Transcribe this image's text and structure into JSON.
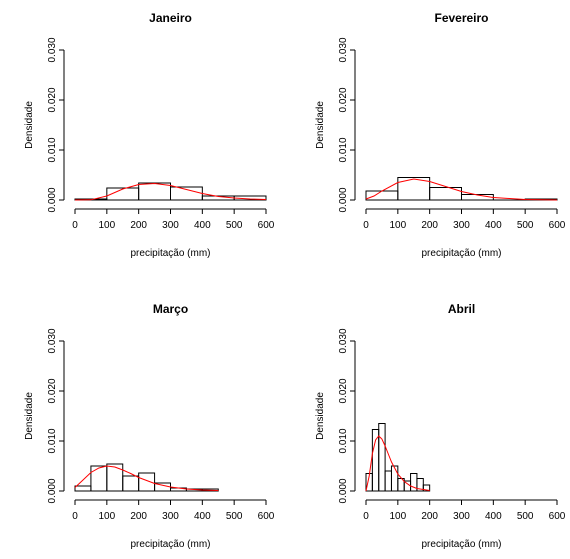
{
  "chart_data": [
    {
      "type": "histogram",
      "title": "Janeiro",
      "xlabel": "precipitação (mm)",
      "ylabel": "Densidade",
      "xlim": [
        0,
        600
      ],
      "ylim": [
        0,
        0.03
      ],
      "xticks": [
        "0",
        "100",
        "200",
        "300",
        "400",
        "500",
        "600"
      ],
      "yticks": [
        "0.000",
        "0.010",
        "0.020",
        "0.030"
      ],
      "bins": [
        {
          "from": 0,
          "to": 100,
          "density": 0.0002
        },
        {
          "from": 100,
          "to": 200,
          "density": 0.0024
        },
        {
          "from": 200,
          "to": 300,
          "density": 0.0034
        },
        {
          "from": 300,
          "to": 400,
          "density": 0.0026
        },
        {
          "from": 400,
          "to": 500,
          "density": 0.0008
        },
        {
          "from": 500,
          "to": 600,
          "density": 0.0008
        }
      ],
      "curve": {
        "color": "#ff0000",
        "x": [
          0,
          50,
          100,
          150,
          200,
          250,
          300,
          350,
          400,
          450,
          500,
          550,
          600
        ],
        "y": [
          0.0,
          5e-05,
          0.0008,
          0.0022,
          0.0031,
          0.0033,
          0.0029,
          0.0021,
          0.0013,
          0.0007,
          0.0004,
          0.0002,
          0.0001
        ]
      }
    },
    {
      "type": "histogram",
      "title": "Fevereiro",
      "xlabel": "precipitação (mm)",
      "ylabel": "Densidade",
      "xlim": [
        0,
        600
      ],
      "ylim": [
        0,
        0.03
      ],
      "xticks": [
        "0",
        "100",
        "200",
        "300",
        "400",
        "500",
        "600"
      ],
      "yticks": [
        "0.000",
        "0.010",
        "0.020",
        "0.030"
      ],
      "bins": [
        {
          "from": 0,
          "to": 100,
          "density": 0.0018
        },
        {
          "from": 100,
          "to": 200,
          "density": 0.0045
        },
        {
          "from": 200,
          "to": 300,
          "density": 0.0025
        },
        {
          "from": 300,
          "to": 400,
          "density": 0.0011
        },
        {
          "from": 400,
          "to": 500,
          "density": 0.0
        },
        {
          "from": 500,
          "to": 600,
          "density": 0.0002
        }
      ],
      "curve": {
        "color": "#ff0000",
        "x": [
          0,
          25,
          50,
          100,
          150,
          200,
          250,
          300,
          350,
          400,
          450,
          500,
          550,
          600
        ],
        "y": [
          0.0002,
          0.0008,
          0.0018,
          0.0035,
          0.0042,
          0.0037,
          0.0027,
          0.0017,
          0.001,
          0.0005,
          0.0003,
          0.0001,
          5e-05,
          0.0
        ]
      }
    },
    {
      "type": "histogram",
      "title": "Março",
      "xlabel": "precipitação (mm)",
      "ylabel": "Densidade",
      "xlim": [
        0,
        600
      ],
      "ylim": [
        0,
        0.03
      ],
      "xticks": [
        "0",
        "100",
        "200",
        "300",
        "400",
        "500",
        "600"
      ],
      "yticks": [
        "0.000",
        "0.010",
        "0.020",
        "0.030"
      ],
      "bins": [
        {
          "from": 0,
          "to": 50,
          "density": 0.001
        },
        {
          "from": 50,
          "to": 100,
          "density": 0.005
        },
        {
          "from": 100,
          "to": 150,
          "density": 0.0054
        },
        {
          "from": 150,
          "to": 200,
          "density": 0.003
        },
        {
          "from": 200,
          "to": 250,
          "density": 0.0036
        },
        {
          "from": 250,
          "to": 300,
          "density": 0.0016
        },
        {
          "from": 300,
          "to": 350,
          "density": 0.0006
        },
        {
          "from": 350,
          "to": 400,
          "density": 0.0004
        },
        {
          "from": 400,
          "to": 450,
          "density": 0.0004
        }
      ],
      "curve": {
        "color": "#ff0000",
        "x": [
          0,
          25,
          50,
          75,
          100,
          125,
          150,
          175,
          200,
          250,
          300,
          350,
          400,
          450
        ],
        "y": [
          0.0007,
          0.0022,
          0.0037,
          0.0046,
          0.005,
          0.0048,
          0.0042,
          0.0035,
          0.0027,
          0.0015,
          0.0008,
          0.0004,
          0.0002,
          0.0001
        ]
      }
    },
    {
      "type": "histogram",
      "title": "Abril",
      "xlabel": "precipitação (mm)",
      "ylabel": "Densidade",
      "xlim": [
        0,
        600
      ],
      "ylim": [
        0,
        0.03
      ],
      "xticks": [
        "0",
        "100",
        "200",
        "300",
        "400",
        "500",
        "600"
      ],
      "yticks": [
        "0.000",
        "0.010",
        "0.020",
        "0.030"
      ],
      "bins": [
        {
          "from": 0,
          "to": 20,
          "density": 0.0035
        },
        {
          "from": 20,
          "to": 40,
          "density": 0.0123
        },
        {
          "from": 40,
          "to": 60,
          "density": 0.0135
        },
        {
          "from": 60,
          "to": 80,
          "density": 0.004
        },
        {
          "from": 80,
          "to": 100,
          "density": 0.005
        },
        {
          "from": 100,
          "to": 120,
          "density": 0.0025
        },
        {
          "from": 120,
          "to": 140,
          "density": 0.002
        },
        {
          "from": 140,
          "to": 160,
          "density": 0.0035
        },
        {
          "from": 160,
          "to": 180,
          "density": 0.0025
        },
        {
          "from": 180,
          "to": 200,
          "density": 0.0012
        }
      ],
      "curve": {
        "color": "#ff0000",
        "x": [
          0,
          10,
          20,
          30,
          40,
          50,
          60,
          70,
          80,
          100,
          120,
          140,
          160,
          180,
          200
        ],
        "y": [
          0.0,
          0.003,
          0.0075,
          0.0102,
          0.011,
          0.0104,
          0.009,
          0.0074,
          0.0058,
          0.0034,
          0.0019,
          0.001,
          0.0005,
          0.0003,
          0.0001
        ]
      }
    }
  ]
}
